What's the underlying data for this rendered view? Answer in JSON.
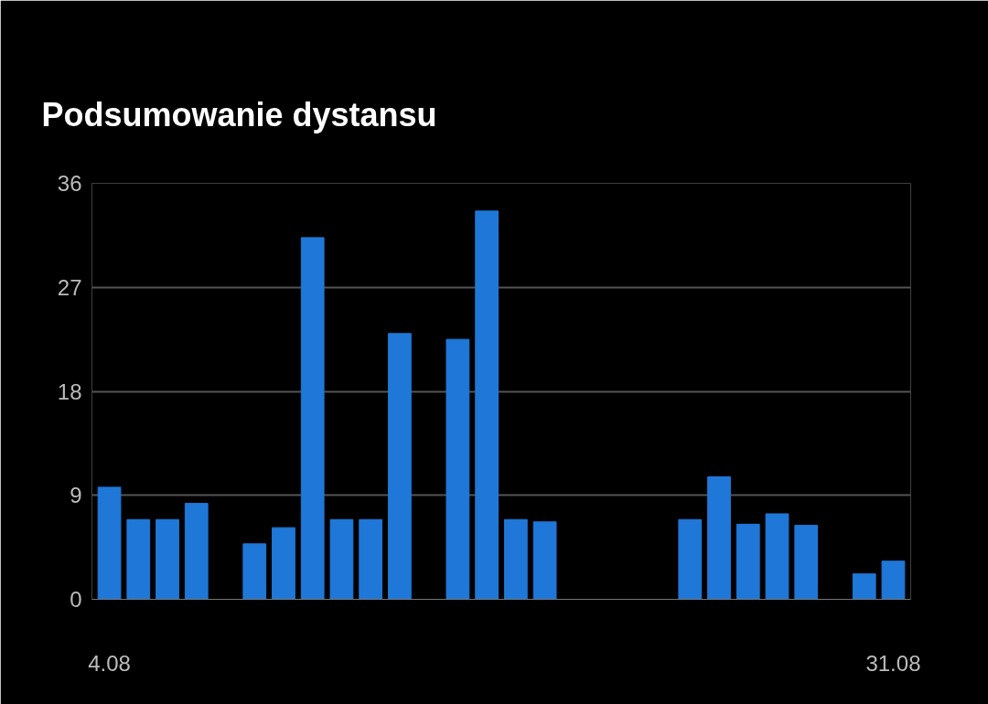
{
  "chart_data": {
    "type": "bar",
    "title": "Podsumowanie dystansu",
    "categories": [
      "4.08",
      null,
      null,
      null,
      null,
      null,
      null,
      null,
      null,
      null,
      null,
      null,
      null,
      null,
      null,
      null,
      null,
      null,
      null,
      null,
      null,
      null,
      null,
      null,
      null,
      null,
      null,
      "31.08"
    ],
    "values": [
      9.7,
      6.9,
      6.9,
      8.3,
      0,
      4.8,
      6.2,
      31.3,
      6.9,
      6.9,
      23.0,
      0,
      22.5,
      33.6,
      6.9,
      6.7,
      0,
      0,
      0,
      0,
      6.9,
      10.6,
      6.5,
      7.4,
      6.4,
      0,
      2.2,
      3.3
    ],
    "color": "#1f78d8",
    "ylim": [
      0,
      36
    ],
    "yticks": [
      0,
      9,
      18,
      27,
      36
    ],
    "grid": "y"
  }
}
